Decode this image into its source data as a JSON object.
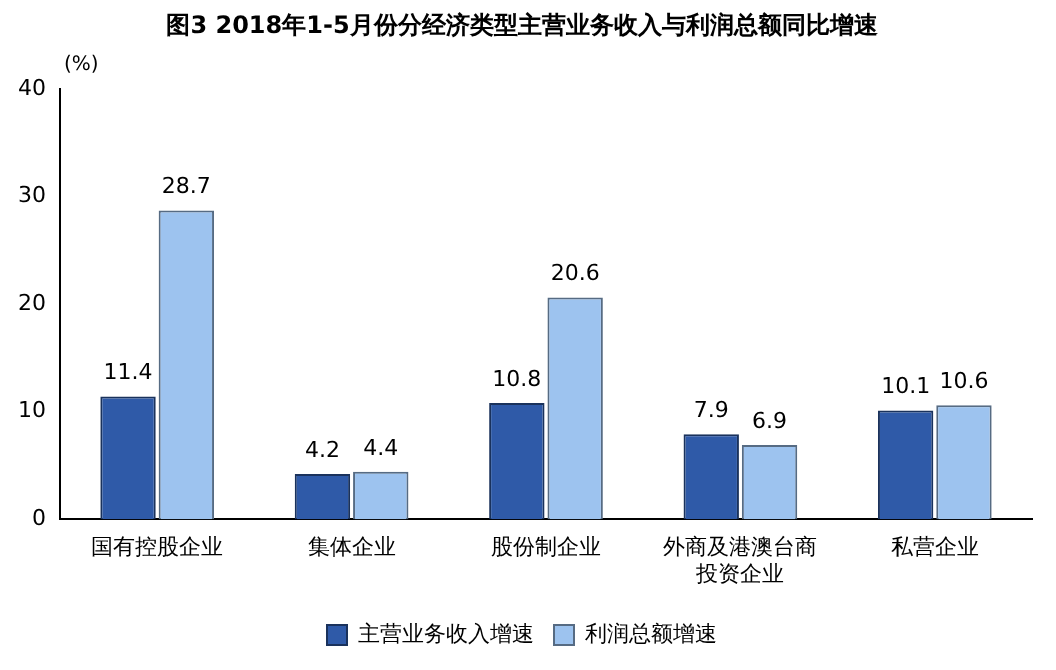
{
  "chart_data": {
    "type": "bar",
    "title": "图3 2018年1-5月份分经济类型主营业务收入与利润总额同比增速",
    "ylabel": "(%)",
    "categories": [
      "国有控股企业",
      "集体企业",
      "股份制企业",
      "外商及港澳台商投资企业",
      "私营企业"
    ],
    "series": [
      {
        "name": "主营业务收入增速",
        "color": "#2f5aa8",
        "values": [
          11.4,
          4.2,
          10.8,
          7.9,
          10.1
        ]
      },
      {
        "name": "利润总额增速",
        "color": "#9dc3ef",
        "values": [
          28.7,
          4.4,
          20.6,
          6.9,
          10.6
        ]
      }
    ],
    "ylim": [
      0,
      40
    ],
    "yticks": [
      0,
      10,
      20,
      30,
      40
    ],
    "grid": false,
    "legend": "bottom",
    "data_labels": true
  }
}
